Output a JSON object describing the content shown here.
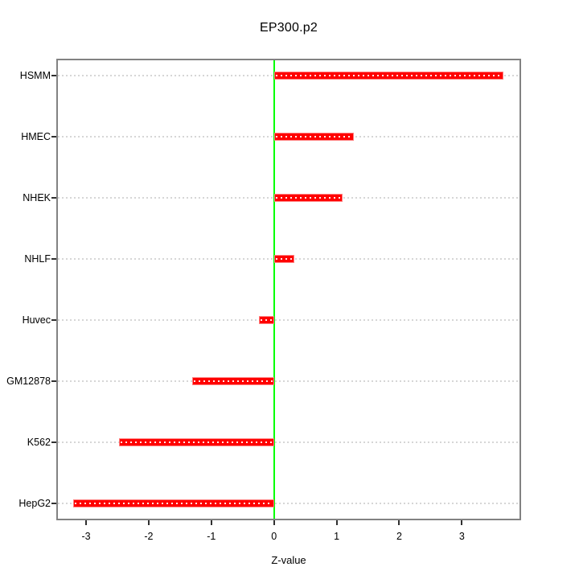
{
  "chart_data": {
    "type": "bar",
    "orientation": "horizontal",
    "title": "EP300.p2",
    "xlabel": "Z-value",
    "ylabel": "",
    "categories": [
      "HSMM",
      "HMEC",
      "NHEK",
      "NHLF",
      "Huvec",
      "GM12878",
      "K562",
      "HepG2"
    ],
    "values": [
      3.66,
      1.27,
      1.09,
      0.33,
      -0.24,
      -1.3,
      -2.48,
      -3.21
    ],
    "baseline": 0,
    "xlim": [
      -3.475,
      3.945
    ],
    "ylim": [
      0.72,
      8.28
    ],
    "x_ticks": [
      -3,
      -2,
      -1,
      0,
      1,
      2,
      3
    ],
    "grid": "dotted horizontal line at each category",
    "legend": "none",
    "colors": {
      "bar": "#ff0000",
      "bar_edge": "#ff8080",
      "bar_dotted_overlay": "#ffffff",
      "zero_line": "#00ff00",
      "grid": "#d6d6d6",
      "frame": "#828282",
      "tick": "#303030",
      "text": "#000000",
      "background": "#ffffff"
    }
  }
}
